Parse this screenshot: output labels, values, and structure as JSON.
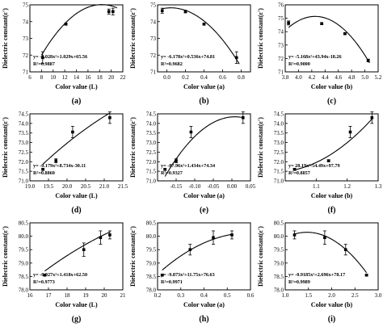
{
  "chart_data": [
    {
      "type": "scatter",
      "panel_tag": "(a)",
      "xlabel": "Color value (L)",
      "ylabel": "Dielectric constant(ε')",
      "xlim": [
        6,
        22
      ],
      "ylim": [
        71,
        75
      ],
      "xticks": [
        6,
        8,
        10,
        12,
        14,
        16,
        18,
        20,
        22
      ],
      "yticks": [
        71,
        72,
        73,
        74,
        75
      ],
      "points": [
        {
          "x": 8.2,
          "y": 71.85,
          "err": 0.35
        },
        {
          "x": 12.2,
          "y": 73.85,
          "err": 0.05
        },
        {
          "x": 19.6,
          "y": 74.6,
          "err": 0.15
        },
        {
          "x": 20.3,
          "y": 74.6,
          "err": 0.2
        }
      ],
      "fit": {
        "a": -0.028,
        "b": 1.029,
        "c": 65.56,
        "x_range": [
          8,
          21
        ]
      },
      "equation": "y= -0.028x²+1.029x+65.56",
      "r2": "R²=0.9887",
      "grid": false,
      "legend": "none"
    },
    {
      "type": "scatter",
      "panel_tag": "(b)",
      "xlabel": "Color value (a)",
      "ylabel": "Dielectric constant(ε')",
      "xlim": [
        -0.1,
        0.9
      ],
      "ylim": [
        71,
        75
      ],
      "xticks": [
        0.0,
        0.2,
        0.4,
        0.6,
        0.8
      ],
      "yticks": [
        71,
        72,
        73,
        74,
        75
      ],
      "points": [
        {
          "x": -0.05,
          "y": 74.65,
          "err": 0.15
        },
        {
          "x": 0.2,
          "y": 74.6,
          "err": 0.08
        },
        {
          "x": 0.4,
          "y": 73.85,
          "err": 0.05
        },
        {
          "x": 0.75,
          "y": 71.85,
          "err": 0.35
        }
      ],
      "fit": {
        "a": -6.178,
        "b": 0.536,
        "c": 74.81,
        "x_range": [
          -0.05,
          0.78
        ]
      },
      "equation": "y= -6.178x²+0.536x+74.81",
      "r2": "R²=0.9682",
      "grid": false,
      "legend": "none"
    },
    {
      "type": "scatter",
      "panel_tag": "(c)",
      "xlabel": "Color value (b)",
      "ylabel": "Dielectric constant(ε')",
      "xlim": [
        3.8,
        5.2
      ],
      "ylim": [
        71,
        76
      ],
      "xticks": [
        3.8,
        4.0,
        4.2,
        4.4,
        4.6,
        4.8,
        5.0,
        5.2
      ],
      "yticks": [
        71,
        72,
        73,
        74,
        75,
        76
      ],
      "points": [
        {
          "x": 3.85,
          "y": 74.65,
          "err": 0.15
        },
        {
          "x": 4.35,
          "y": 74.6,
          "err": 0.08
        },
        {
          "x": 4.7,
          "y": 73.85,
          "err": 0.05
        },
        {
          "x": 5.05,
          "y": 71.85,
          "err": 0.1
        }
      ],
      "fit": {
        "a": -5.168,
        "b": 43.94,
        "c": -18.26,
        "x_range": [
          3.85,
          5.07
        ]
      },
      "equation": "y= -5.168x²+43.94x-18.26",
      "r2": "R²=0.9000",
      "grid": false,
      "legend": "none"
    },
    {
      "type": "scatter",
      "panel_tag": "(d)",
      "xlabel": "Color value (L)",
      "ylabel": "Dielectric constant(ε')",
      "xlim": [
        19.0,
        21.5
      ],
      "ylim": [
        71.0,
        74.5
      ],
      "xticks": [
        19.0,
        19.5,
        20.0,
        20.5,
        21.0,
        21.5
      ],
      "yticks": [
        71.0,
        71.5,
        72.0,
        72.5,
        73.0,
        73.5,
        74.0,
        74.5
      ],
      "points": [
        {
          "x": 19.35,
          "y": 71.6,
          "err": 0.05
        },
        {
          "x": 19.7,
          "y": 72.05,
          "err": 0.1
        },
        {
          "x": 20.15,
          "y": 73.55,
          "err": 0.3
        },
        {
          "x": 21.15,
          "y": 74.3,
          "err": 0.3
        }
      ],
      "fit": {
        "a": -0.179,
        "b": 8.734,
        "c": -30.11,
        "x_range": [
          19.35,
          21.15
        ]
      },
      "equation": "y= -0.179x²+8.734x-30.11",
      "r2": "R²=0.8860",
      "grid": false,
      "legend": "none"
    },
    {
      "type": "scatter",
      "panel_tag": "(e)",
      "xlabel": "Color value (a)",
      "ylabel": "Dielectric constant(ε')",
      "xlim": [
        -0.2,
        0.05
      ],
      "ylim": [
        71.0,
        74.5
      ],
      "xticks": [
        -0.15,
        -0.1,
        -0.05,
        0.0,
        0.05
      ],
      "yticks": [
        71.0,
        71.5,
        72.0,
        72.5,
        73.0,
        73.5,
        74.0,
        74.5
      ],
      "points": [
        {
          "x": -0.18,
          "y": 71.6,
          "err": 0.05
        },
        {
          "x": -0.15,
          "y": 72.05,
          "err": 0.1
        },
        {
          "x": -0.11,
          "y": 73.55,
          "err": 0.3
        },
        {
          "x": 0.03,
          "y": 74.3,
          "err": 0.3
        }
      ],
      "fit": {
        "a": -87.96,
        "b": 1.434,
        "c": 74.34,
        "x_range": [
          -0.18,
          0.03
        ]
      },
      "equation": "y= -87.96x²+1.434x+74.34",
      "r2": "R²=0.9327",
      "grid": false,
      "legend": "none"
    },
    {
      "type": "scatter",
      "panel_tag": "(f)",
      "xlabel": "Color value (b)",
      "ylabel": "Dielectric constant(ε')",
      "xlim": [
        1.0,
        1.3
      ],
      "ylim": [
        71.0,
        74.5
      ],
      "xticks": [
        1.1,
        1.2,
        1.3
      ],
      "yticks": [
        71.0,
        71.5,
        72.0,
        72.5,
        73.0,
        73.5,
        74.0,
        74.5
      ],
      "points": [
        {
          "x": 1.03,
          "y": 71.6,
          "err": 0.05
        },
        {
          "x": 1.14,
          "y": 72.05,
          "err": 0.05
        },
        {
          "x": 1.21,
          "y": 73.55,
          "err": 0.3
        },
        {
          "x": 1.28,
          "y": 74.3,
          "err": 0.3
        }
      ],
      "fit": {
        "a": 28.19,
        "b": -54.49,
        "c": 97.79,
        "x_range": [
          1.03,
          1.28
        ]
      },
      "equation": "y= 28.19x²-54.49x+97.79",
      "r2": "R²=0.8857",
      "grid": false,
      "legend": "none"
    },
    {
      "type": "scatter",
      "panel_tag": "(g)",
      "xlabel": "Color value (L)",
      "ylabel": "Dielectric constant(ε')",
      "xlim": [
        16,
        21
      ],
      "ylim": [
        78.0,
        80.5
      ],
      "xticks": [
        16,
        17,
        18,
        19,
        20,
        21
      ],
      "yticks": [
        78.0,
        78.5,
        79.0,
        79.5,
        80.0,
        80.5
      ],
      "points": [
        {
          "x": 16.8,
          "y": 78.55,
          "err": 0.02
        },
        {
          "x": 18.9,
          "y": 79.5,
          "err": 0.25
        },
        {
          "x": 19.8,
          "y": 79.95,
          "err": 0.25
        },
        {
          "x": 20.3,
          "y": 80.05,
          "err": 0.15
        }
      ],
      "fit": {
        "a": -0.027,
        "b": 1.418,
        "c": 62.5,
        "x_range": [
          16.8,
          20.3
        ]
      },
      "equation": "y= -0.027x²+1.418x+62.50",
      "r2": "R²=0.9773",
      "grid": false,
      "legend": "none"
    },
    {
      "type": "scatter",
      "panel_tag": "(h)",
      "xlabel": "Color value (a)",
      "ylabel": "Dielectric constant(ε')",
      "xlim": [
        0.2,
        0.6
      ],
      "ylim": [
        78.0,
        80.5
      ],
      "xticks": [
        0.2,
        0.3,
        0.4,
        0.5,
        0.6
      ],
      "yticks": [
        78.0,
        78.5,
        79.0,
        79.5,
        80.0,
        80.5
      ],
      "points": [
        {
          "x": 0.22,
          "y": 78.55,
          "err": 0.02
        },
        {
          "x": 0.34,
          "y": 79.5,
          "err": 0.2
        },
        {
          "x": 0.44,
          "y": 79.95,
          "err": 0.25
        },
        {
          "x": 0.52,
          "y": 80.05,
          "err": 0.15
        }
      ],
      "fit": {
        "a": -9.873,
        "b": 11.75,
        "c": 76.63,
        "x_range": [
          0.22,
          0.52
        ]
      },
      "equation": "y= -9.873x²+11.75x+76.63",
      "r2": "R²=0.9971",
      "grid": false,
      "legend": "none"
    },
    {
      "type": "scatter",
      "panel_tag": "(i)",
      "xlabel": "Color value (b)",
      "ylabel": "Dielectric constant(ε')",
      "xlim": [
        1.0,
        3.0
      ],
      "ylim": [
        78.0,
        80.5
      ],
      "xticks": [
        1.0,
        1.5,
        2.0,
        2.5,
        3.0
      ],
      "yticks": [
        78.0,
        78.5,
        79.0,
        79.5,
        80.0,
        80.5
      ],
      "points": [
        {
          "x": 1.2,
          "y": 80.05,
          "err": 0.15
        },
        {
          "x": 1.85,
          "y": 79.95,
          "err": 0.25
        },
        {
          "x": 2.3,
          "y": 79.5,
          "err": 0.2
        },
        {
          "x": 2.75,
          "y": 78.55,
          "err": 0.02
        }
      ],
      "fit": {
        "a": -0.9185,
        "b": 2.696,
        "c": 78.17,
        "x_range": [
          1.2,
          2.75
        ]
      },
      "equation": "y= -0.9185x²+2.696x+78.17",
      "r2": "R²=0.9989",
      "grid": false,
      "legend": "none"
    }
  ]
}
